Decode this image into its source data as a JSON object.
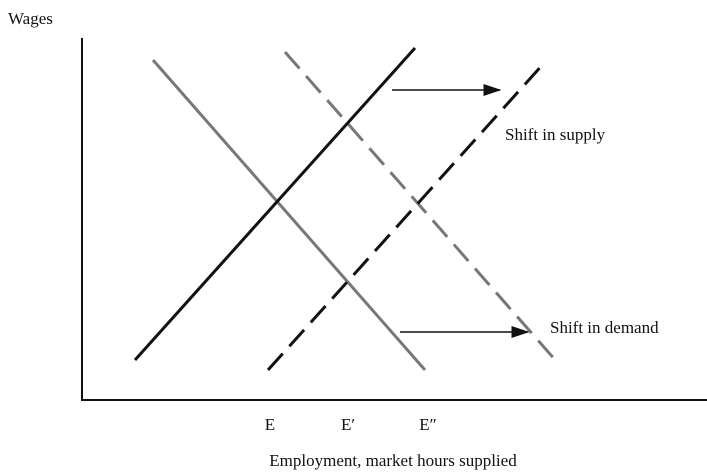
{
  "y_axis_label": "Wages",
  "x_axis_label": "Employment, market hours supplied",
  "annotations": [
    "Shift in supply",
    "Shift in demand"
  ],
  "x_points": [
    "E",
    "E′",
    "E″"
  ]
}
